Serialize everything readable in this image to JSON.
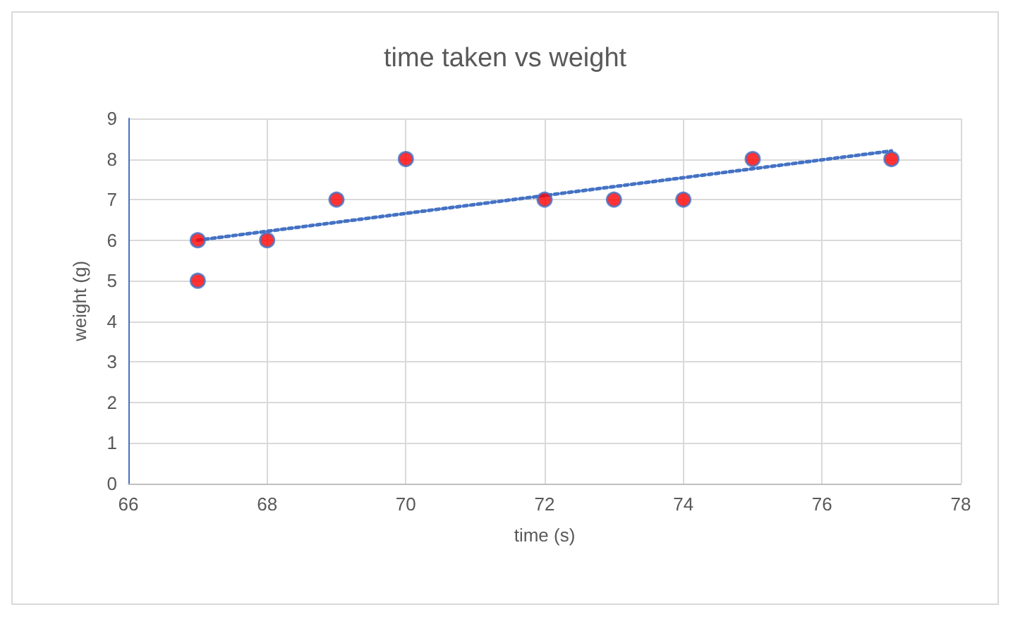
{
  "chart_data": {
    "type": "scatter",
    "title": "time taken vs weight",
    "xlabel": "time (s)",
    "ylabel": "weight (g)",
    "x": [
      67,
      67,
      68,
      69,
      70,
      72,
      73,
      74,
      75,
      77
    ],
    "series": [
      {
        "color": "#ff0000",
        "values": [
          6,
          5,
          6,
          7,
          8,
          7,
          7,
          7,
          8,
          8
        ],
        "marker": "circle"
      },
      {
        "type": "line",
        "x": [
          67,
          77
        ],
        "values": [
          6,
          8.2
        ],
        "color": "#4472c4",
        "line_style": "dotted",
        "marker": "none"
      }
    ],
    "xlim": [
      66,
      78
    ],
    "xticks": [
      66,
      68,
      70,
      72,
      74,
      76,
      78
    ],
    "ylim": [
      0,
      9
    ],
    "yticks": [
      0,
      1,
      2,
      3,
      4,
      5,
      6,
      7,
      8,
      9
    ],
    "grid": true
  }
}
